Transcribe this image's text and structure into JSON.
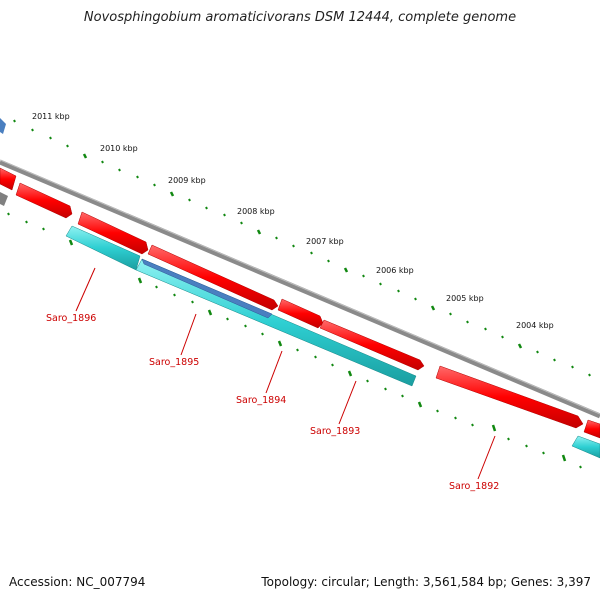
{
  "title": "Novosphingobium aromaticivorans DSM 12444, complete genome",
  "footer": {
    "accession": "Accession: NC_007794",
    "summary": "Topology: circular; Length: 3,561,584 bp; Genes: 3,397"
  },
  "scale_labels": [
    "2011 kbp",
    "2010 kbp",
    "2009 kbp",
    "2008 kbp",
    "2007 kbp",
    "2006 kbp",
    "2005 kbp",
    "2004 kbp"
  ],
  "gene_labels": [
    "Saro_1896",
    "Saro_1895",
    "Saro_1894",
    "Saro_1893",
    "Saro_1892"
  ],
  "colors": {
    "forward": "#ff0000",
    "reverse": "#2ecfd2",
    "backbone": "#808080",
    "ticks": "#118811",
    "label": "#cc0000",
    "selected": "#4a7fc0"
  }
}
